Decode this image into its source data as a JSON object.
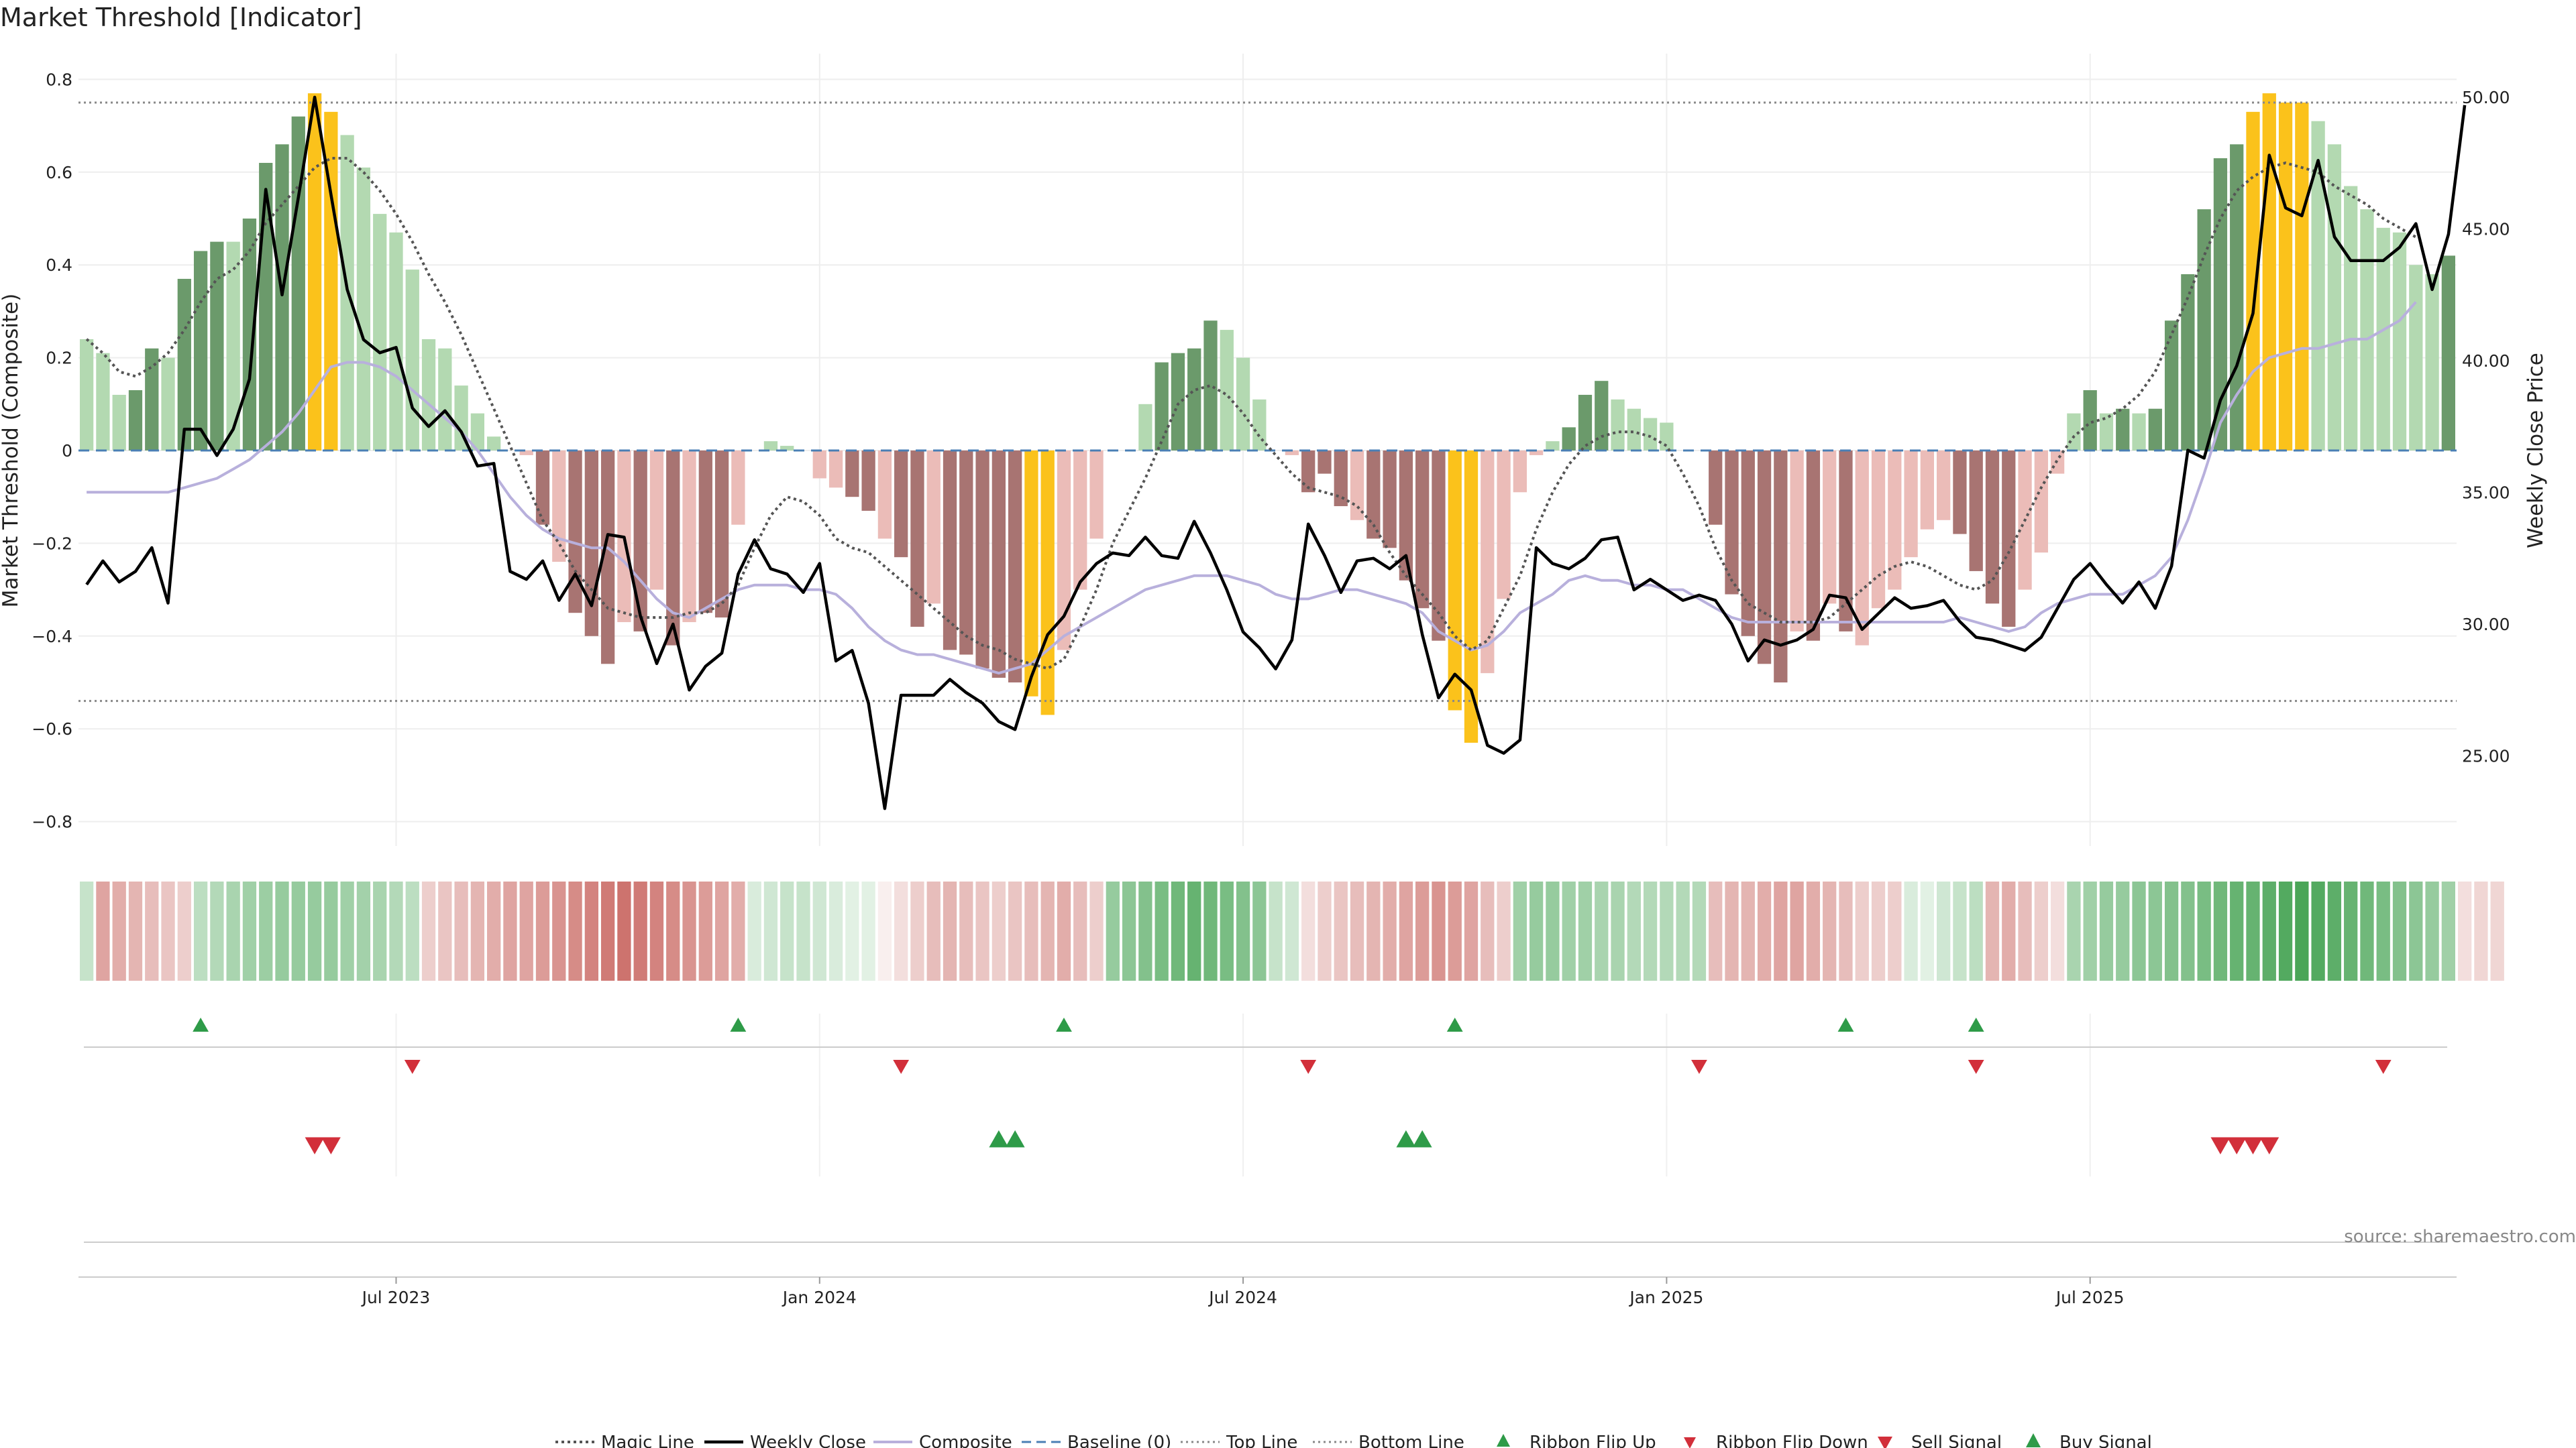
{
  "title": "Market Threshold [Indicator]",
  "colors": {
    "strong_green": "#6b9a6b",
    "light_green": "#b3d9b1",
    "strong_red": "#a87472",
    "light_red": "#ebbcb8",
    "extreme": "#fbc21b",
    "magic": "#555555",
    "close": "#000000",
    "composite": "#b8b0dc",
    "baseline": "#4a7fb5",
    "ribbon_up": "#2e9b48",
    "ribbon_down": "#d22f3a"
  },
  "chart_data": {
    "type": "bar",
    "title": "Market Threshold [Indicator]",
    "ylabel": "Market Threshold (Composite)",
    "y2label": "Weekly Close Price",
    "ylim": [
      -0.84,
      0.84
    ],
    "y2lim": [
      22.0,
      50.9
    ],
    "yticks": [
      0.8,
      0.6,
      0.4,
      0.2,
      0,
      -0.2,
      -0.4,
      -0.6,
      -0.8
    ],
    "ytick_labels": [
      "0.8",
      "0.6",
      "0.4",
      "0.2",
      "0",
      "−0.2",
      "−0.4",
      "−0.6",
      "−0.8"
    ],
    "y2ticks": [
      50,
      45,
      40,
      35,
      30,
      25
    ],
    "y2tick_labels": [
      "50.00",
      "45.00",
      "40.00",
      "35.00",
      "30.00",
      "25.00"
    ],
    "xticks": [
      {
        "week": 19.5,
        "label": "Jul 2023"
      },
      {
        "week": 45.5,
        "label": "Jan 2024"
      },
      {
        "week": 71.5,
        "label": "Jul 2024"
      },
      {
        "week": 97.5,
        "label": "Jan 2025"
      },
      {
        "week": 123.5,
        "label": "Jul 2025"
      }
    ],
    "top_line": 0.75,
    "bottom_line": -0.54,
    "baseline": 0,
    "composite_bars": [
      0.24,
      0.21,
      0.12,
      0.13,
      0.22,
      0.2,
      0.37,
      0.43,
      0.45,
      0.45,
      0.5,
      0.62,
      0.66,
      0.72,
      0.77,
      0.73,
      0.68,
      0.61,
      0.51,
      0.47,
      0.39,
      0.24,
      0.22,
      0.14,
      0.08,
      0.03,
      0,
      -0.01,
      -0.16,
      -0.24,
      -0.35,
      -0.4,
      -0.46,
      -0.37,
      -0.39,
      -0.3,
      -0.42,
      -0.37,
      -0.35,
      -0.36,
      -0.16,
      0,
      0.02,
      0.01,
      0,
      -0.06,
      -0.08,
      -0.1,
      -0.13,
      -0.19,
      -0.23,
      -0.38,
      -0.33,
      -0.43,
      -0.44,
      -0.47,
      -0.49,
      -0.5,
      -0.53,
      -0.57,
      -0.43,
      -0.3,
      -0.19,
      0,
      0,
      0.1,
      0.19,
      0.21,
      0.22,
      0.28,
      0.26,
      0.2,
      0.11,
      0,
      -0.01,
      -0.09,
      -0.05,
      -0.12,
      -0.15,
      -0.19,
      -0.21,
      -0.28,
      -0.34,
      -0.41,
      -0.56,
      -0.63,
      -0.48,
      -0.32,
      -0.09,
      -0.01,
      0.02,
      0.05,
      0.12,
      0.15,
      0.11,
      0.09,
      0.07,
      0.06,
      0,
      0,
      -0.16,
      -0.31,
      -0.4,
      -0.46,
      -0.5,
      -0.39,
      -0.41,
      -0.33,
      -0.39,
      -0.42,
      -0.34,
      -0.3,
      -0.23,
      -0.17,
      -0.15,
      -0.18,
      -0.26,
      -0.33,
      -0.38,
      -0.3,
      -0.22,
      -0.05,
      0.08,
      0.13,
      0.08,
      0.09,
      0.08,
      0.09,
      0.28,
      0.38,
      0.52,
      0.63,
      0.66,
      0.73,
      0.77,
      0.75,
      0.75,
      0.71,
      0.66,
      0.57,
      0.52,
      0.48,
      0.47,
      0.4,
      0.38,
      0.42
    ],
    "bar_classes": [
      "lg",
      "lg",
      "lg",
      "sg",
      "sg",
      "lg",
      "sg",
      "sg",
      "sg",
      "lg",
      "sg",
      "sg",
      "sg",
      "sg",
      "ex",
      "ex",
      "lg",
      "lg",
      "lg",
      "lg",
      "lg",
      "lg",
      "lg",
      "lg",
      "lg",
      "lg",
      "lg",
      "lr",
      "sr",
      "lr",
      "sr",
      "sr",
      "sr",
      "lr",
      "sr",
      "lr",
      "sr",
      "lr",
      "sr",
      "sr",
      "lr",
      "lr",
      "lg",
      "lg",
      "lr",
      "lr",
      "lr",
      "sr",
      "sr",
      "lr",
      "sr",
      "sr",
      "lr",
      "sr",
      "sr",
      "sr",
      "sr",
      "sr",
      "ex",
      "ex",
      "lr",
      "lr",
      "lr",
      "lg",
      "lg",
      "lg",
      "sg",
      "sg",
      "sg",
      "sg",
      "lg",
      "lg",
      "lg",
      "lr",
      "lr",
      "sr",
      "sr",
      "sr",
      "lr",
      "sr",
      "sr",
      "sr",
      "sr",
      "sr",
      "ex",
      "ex",
      "lr",
      "lr",
      "lr",
      "lr",
      "lg",
      "sg",
      "sg",
      "sg",
      "lg",
      "lg",
      "lg",
      "lg",
      "lg",
      "lr",
      "sr",
      "sr",
      "sr",
      "sr",
      "sr",
      "lr",
      "sr",
      "lr",
      "sr",
      "lr",
      "lr",
      "lr",
      "lr",
      "lr",
      "lr",
      "sr",
      "sr",
      "sr",
      "sr",
      "lr",
      "lr",
      "lr",
      "lg",
      "sg",
      "lg",
      "sg",
      "lg",
      "sg",
      "sg",
      "sg",
      "sg",
      "sg",
      "sg",
      "ex",
      "ex",
      "ex",
      "ex",
      "lg",
      "lg",
      "lg",
      "lg",
      "lg",
      "lg",
      "lg",
      "lg",
      "sg",
      "sg"
    ],
    "magic_line": [
      0.24,
      0.21,
      0.17,
      0.16,
      0.18,
      0.21,
      0.26,
      0.32,
      0.37,
      0.39,
      0.43,
      0.49,
      0.53,
      0.57,
      0.61,
      0.63,
      0.63,
      0.6,
      0.56,
      0.51,
      0.45,
      0.38,
      0.32,
      0.25,
      0.17,
      0.09,
      0.01,
      -0.07,
      -0.15,
      -0.2,
      -0.26,
      -0.3,
      -0.34,
      -0.35,
      -0.36,
      -0.36,
      -0.36,
      -0.35,
      -0.35,
      -0.33,
      -0.29,
      -0.21,
      -0.14,
      -0.1,
      -0.11,
      -0.14,
      -0.19,
      -0.21,
      -0.22,
      -0.25,
      -0.28,
      -0.31,
      -0.34,
      -0.37,
      -0.4,
      -0.42,
      -0.43,
      -0.45,
      -0.46,
      -0.47,
      -0.45,
      -0.38,
      -0.3,
      -0.2,
      -0.13,
      -0.06,
      0.02,
      0.1,
      0.13,
      0.14,
      0.12,
      0.08,
      0.03,
      -0.01,
      -0.05,
      -0.08,
      -0.09,
      -0.1,
      -0.12,
      -0.16,
      -0.22,
      -0.27,
      -0.31,
      -0.35,
      -0.4,
      -0.43,
      -0.41,
      -0.34,
      -0.27,
      -0.17,
      -0.09,
      -0.03,
      0.01,
      0.03,
      0.04,
      0.04,
      0.03,
      0.01,
      -0.05,
      -0.12,
      -0.21,
      -0.28,
      -0.33,
      -0.35,
      -0.37,
      -0.37,
      -0.37,
      -0.36,
      -0.33,
      -0.3,
      -0.27,
      -0.25,
      -0.24,
      -0.25,
      -0.27,
      -0.29,
      -0.3,
      -0.28,
      -0.22,
      -0.15,
      -0.08,
      -0.02,
      0.03,
      0.06,
      0.07,
      0.09,
      0.12,
      0.17,
      0.25,
      0.33,
      0.42,
      0.5,
      0.56,
      0.59,
      0.61,
      0.62,
      0.61,
      0.6,
      0.57,
      0.55,
      0.53,
      0.5,
      0.48,
      0.46
    ],
    "composite_line": [
      -0.09,
      -0.09,
      -0.09,
      -0.09,
      -0.09,
      -0.09,
      -0.08,
      -0.07,
      -0.06,
      -0.04,
      -0.02,
      0.01,
      0.04,
      0.08,
      0.13,
      0.18,
      0.19,
      0.19,
      0.18,
      0.16,
      0.13,
      0.1,
      0.07,
      0.04,
      0.0,
      -0.05,
      -0.1,
      -0.14,
      -0.17,
      -0.19,
      -0.2,
      -0.21,
      -0.21,
      -0.24,
      -0.28,
      -0.32,
      -0.35,
      -0.36,
      -0.34,
      -0.32,
      -0.3,
      -0.29,
      -0.29,
      -0.29,
      -0.3,
      -0.3,
      -0.31,
      -0.34,
      -0.38,
      -0.41,
      -0.43,
      -0.44,
      -0.44,
      -0.45,
      -0.46,
      -0.47,
      -0.48,
      -0.47,
      -0.46,
      -0.43,
      -0.4,
      -0.38,
      -0.36,
      -0.34,
      -0.32,
      -0.3,
      -0.29,
      -0.28,
      -0.27,
      -0.27,
      -0.27,
      -0.28,
      -0.29,
      -0.31,
      -0.32,
      -0.32,
      -0.31,
      -0.3,
      -0.3,
      -0.31,
      -0.32,
      -0.33,
      -0.35,
      -0.39,
      -0.41,
      -0.43,
      -0.42,
      -0.39,
      -0.35,
      -0.33,
      -0.31,
      -0.28,
      -0.27,
      -0.28,
      -0.28,
      -0.29,
      -0.29,
      -0.3,
      -0.3,
      -0.32,
      -0.34,
      -0.36,
      -0.37,
      -0.37,
      -0.37,
      -0.37,
      -0.37,
      -0.37,
      -0.37,
      -0.37,
      -0.37,
      -0.37,
      -0.37,
      -0.37,
      -0.37,
      -0.36,
      -0.37,
      -0.38,
      -0.39,
      -0.38,
      -0.35,
      -0.33,
      -0.32,
      -0.31,
      -0.31,
      -0.31,
      -0.29,
      -0.27,
      -0.23,
      -0.15,
      -0.05,
      0.06,
      0.12,
      0.17,
      0.2,
      0.21,
      0.22,
      0.22,
      0.23,
      0.24,
      0.24,
      0.26,
      0.28,
      0.32
    ],
    "weekly_close": [
      31.5,
      32.4,
      31.6,
      32.0,
      32.9,
      30.8,
      37.4,
      37.4,
      36.4,
      37.4,
      39.3,
      46.5,
      42.5,
      46.2,
      50.0,
      46.3,
      42.7,
      40.8,
      40.3,
      40.5,
      38.2,
      37.5,
      38.1,
      37.3,
      36.0,
      36.1,
      32.0,
      31.7,
      32.4,
      30.9,
      31.9,
      30.7,
      33.4,
      33.3,
      30.3,
      28.5,
      30.0,
      27.5,
      28.4,
      28.9,
      31.9,
      33.2,
      32.1,
      31.9,
      31.2,
      32.3,
      28.6,
      29.0,
      27.0,
      23.0,
      27.3,
      27.3,
      27.3,
      27.9,
      27.4,
      27.0,
      26.3,
      26.0,
      28.0,
      29.6,
      30.3,
      31.6,
      32.3,
      32.7,
      32.6,
      33.3,
      32.6,
      32.5,
      33.9,
      32.7,
      31.3,
      29.7,
      29.1,
      28.3,
      29.4,
      33.8,
      32.6,
      31.2,
      32.4,
      32.5,
      32.1,
      32.6,
      29.6,
      27.2,
      28.1,
      27.5,
      25.4,
      25.1,
      25.6,
      32.9,
      32.3,
      32.1,
      32.5,
      33.2,
      33.3,
      31.3,
      31.7,
      31.3,
      30.9,
      31.1,
      30.9,
      30.0,
      28.6,
      29.4,
      29.2,
      29.4,
      29.8,
      31.1,
      31.0,
      29.8,
      30.4,
      31.0,
      30.6,
      30.7,
      30.9,
      30.1,
      29.5,
      29.4,
      29.2,
      29.0,
      29.5,
      30.6,
      31.7,
      32.3,
      31.5,
      30.8,
      31.6,
      30.6,
      32.2,
      36.6,
      36.3,
      38.5,
      39.8,
      41.8,
      47.8,
      45.8,
      45.5,
      47.6,
      44.7,
      43.8,
      43.8,
      43.8,
      44.3,
      45.2,
      42.7,
      44.8,
      49.7
    ],
    "ribbon_up_weeks": [
      7,
      40,
      60,
      84,
      108,
      116
    ],
    "ribbon_down_weeks": [
      20,
      50,
      75,
      99,
      116,
      141
    ],
    "sell_signal_weeks": [
      14,
      15,
      131,
      132,
      133,
      134
    ],
    "buy_signal_weeks": [
      56,
      57,
      81,
      82
    ],
    "heat_strip": [
      0.3,
      -0.55,
      -0.5,
      -0.45,
      -0.4,
      -0.35,
      -0.3,
      0.35,
      0.4,
      0.45,
      0.5,
      0.52,
      0.55,
      0.55,
      0.55,
      0.55,
      0.5,
      0.48,
      0.45,
      0.4,
      0.35,
      -0.3,
      -0.35,
      -0.4,
      -0.45,
      -0.5,
      -0.55,
      -0.55,
      -0.6,
      -0.65,
      -0.7,
      -0.75,
      -0.8,
      -0.85,
      -0.8,
      -0.75,
      -0.7,
      -0.65,
      -0.6,
      -0.55,
      -0.5,
      0.2,
      0.25,
      0.3,
      0.3,
      0.25,
      0.2,
      0.15,
      0.15,
      -0.1,
      -0.2,
      -0.3,
      -0.4,
      -0.45,
      -0.4,
      -0.35,
      -0.3,
      -0.35,
      -0.4,
      -0.45,
      -0.5,
      -0.4,
      -0.3,
      0.55,
      0.6,
      0.65,
      0.7,
      0.75,
      0.8,
      0.75,
      0.7,
      0.65,
      0.6,
      0.3,
      0.25,
      -0.2,
      -0.3,
      -0.35,
      -0.4,
      -0.45,
      -0.5,
      -0.55,
      -0.6,
      -0.65,
      -0.6,
      -0.55,
      -0.4,
      -0.3,
      0.5,
      0.55,
      0.55,
      0.5,
      0.5,
      0.45,
      0.45,
      0.4,
      0.4,
      0.4,
      0.4,
      0.4,
      -0.4,
      -0.45,
      -0.45,
      -0.5,
      -0.55,
      -0.55,
      -0.5,
      -0.45,
      -0.4,
      -0.3,
      -0.3,
      -0.3,
      0.2,
      0.15,
      0.25,
      0.3,
      0.35,
      -0.45,
      -0.5,
      -0.4,
      -0.3,
      -0.2,
      0.45,
      0.5,
      0.55,
      0.55,
      0.6,
      0.6,
      0.65,
      0.65,
      0.7,
      0.75,
      0.8,
      0.8,
      0.85,
      0.9,
      0.95,
      0.9,
      0.85,
      0.8,
      0.75,
      0.7,
      0.65,
      0.6,
      0.55,
      0.5,
      -0.2,
      -0.25,
      -0.25
    ],
    "legend": [
      "Magic Line",
      "Weekly Close",
      "Composite",
      "Baseline (0)",
      "Top Line",
      "Bottom Line",
      "Ribbon Flip Up",
      "Ribbon Flip Down",
      "Sell Signal",
      "Buy Signal"
    ],
    "source": "source: sharemaestro.com"
  }
}
